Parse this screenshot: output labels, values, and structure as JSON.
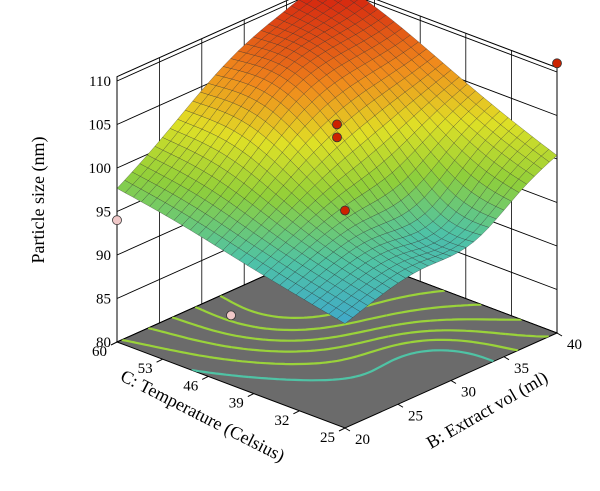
{
  "chart_data": {
    "type": "surface3d",
    "title": "",
    "zlabel": "Particle size (nm)",
    "xlabel": "C: Temperature (Celsius)",
    "ylabel": "B: Extract vol (ml)",
    "z_ticks": [
      "80",
      "85",
      "90",
      "95",
      "100",
      "105",
      "110"
    ],
    "x_ticks": [
      "60",
      "53",
      "46",
      "39",
      "32",
      "25"
    ],
    "y_ticks": [
      "20",
      "25",
      "30",
      "35",
      "40"
    ],
    "zlim": [
      80,
      110
    ],
    "xlim": [
      25,
      60
    ],
    "ylim": [
      20,
      40
    ],
    "colormap": [
      "#3a9fd6",
      "#4fc3a5",
      "#8fcf3a",
      "#e0e026",
      "#f08a1c",
      "#d62a10"
    ],
    "floor_color": "#6b6b6b",
    "contour_color": "#9ad33a",
    "surface_corners": {
      "T60_V20": 98.5,
      "T25_V20": 91.0,
      "T60_V40": 110.0,
      "T25_V40": 101.5,
      "center": 101.0
    },
    "design_points": [
      {
        "temperature": 25,
        "extract_vol": 40,
        "particle_size": 111,
        "color": "#cc2200"
      },
      {
        "temperature": 42.5,
        "extract_vol": 30,
        "particle_size": 104.5,
        "color": "#cc2200"
      },
      {
        "temperature": 42.5,
        "extract_vol": 30,
        "particle_size": 103,
        "color": "#cc2200"
      },
      {
        "temperature": 25,
        "extract_vol": 20,
        "particle_size": 105,
        "color": "#cc2200"
      },
      {
        "temperature": 60,
        "extract_vol": 20,
        "particle_size": 94,
        "color": "#f0c8c8"
      },
      {
        "temperature": 42.5,
        "extract_vol": 20,
        "particle_size": 88,
        "color": "#f0c8c8"
      }
    ]
  }
}
